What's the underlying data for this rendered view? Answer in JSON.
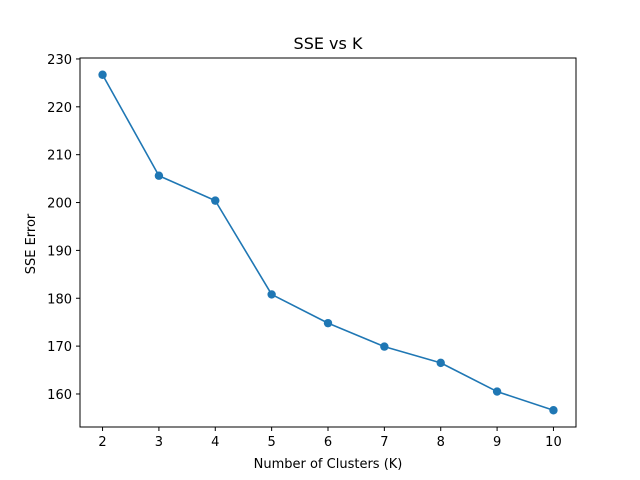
{
  "chart_data": {
    "type": "line",
    "title": "SSE vs K",
    "xlabel": "Number of Clusters (K)",
    "ylabel": "SSE Error",
    "x": [
      2,
      3,
      4,
      5,
      6,
      7,
      8,
      9,
      10
    ],
    "series": [
      {
        "values": [
          226.7,
          205.6,
          200.4,
          180.8,
          174.8,
          169.9,
          166.5,
          160.5,
          156.6
        ],
        "color": "#1f77b4",
        "marker": "circle"
      }
    ],
    "xlim": [
      1.6,
      10.4
    ],
    "ylim": [
      153.1,
      230.2
    ],
    "xticks": [
      "2",
      "3",
      "4",
      "5",
      "6",
      "7",
      "8",
      "9",
      "10"
    ],
    "yticks": [
      "160",
      "170",
      "180",
      "190",
      "200",
      "210",
      "220",
      "230"
    ],
    "grid": false,
    "legend": "none"
  }
}
